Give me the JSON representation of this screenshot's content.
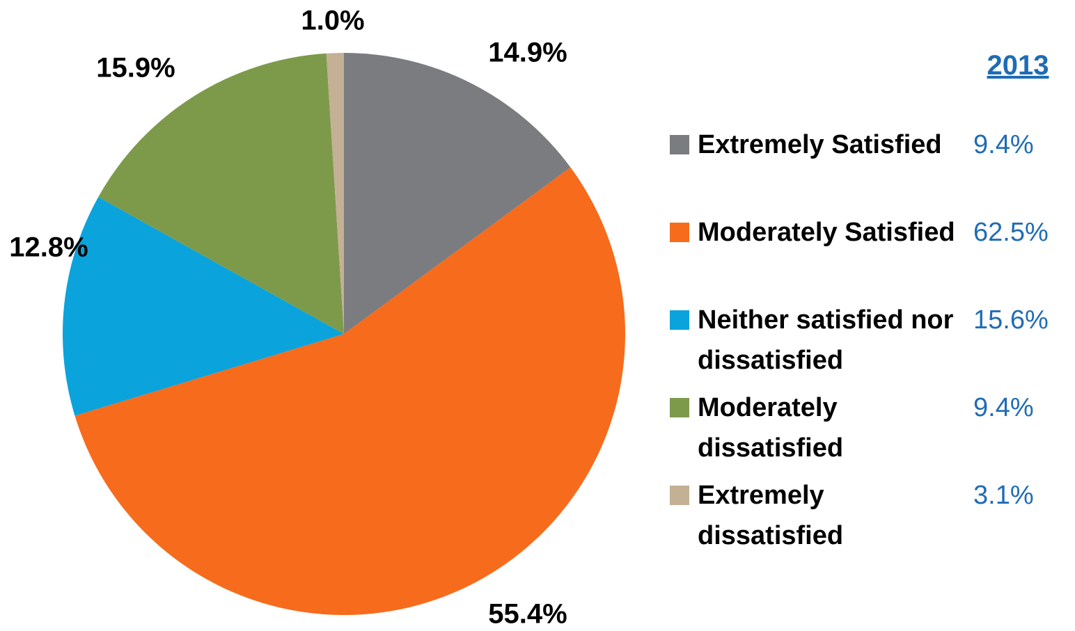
{
  "chart_data": {
    "type": "pie",
    "categories": [
      "Extremely Satisfied",
      "Moderately Satisfied",
      "Neither satisfied nor dissatisfied",
      "Moderately dissatisfied",
      "Extremely dissatisfied"
    ],
    "values": [
      14.9,
      55.4,
      12.8,
      15.9,
      1.0
    ],
    "value_labels": [
      "14.9%",
      "55.4%",
      "12.8%",
      "15.9%",
      "1.0%"
    ],
    "colors": [
      "#7b7c80",
      "#f76b1c",
      "#0ba3dc",
      "#7d9a4b",
      "#c4b094"
    ],
    "comparison": {
      "title": "2013",
      "values": [
        9.4,
        62.5,
        15.6,
        9.4,
        3.1
      ],
      "value_labels": [
        "9.4%",
        "62.5%",
        "15.6%",
        "9.4%",
        "3.1%"
      ]
    }
  }
}
